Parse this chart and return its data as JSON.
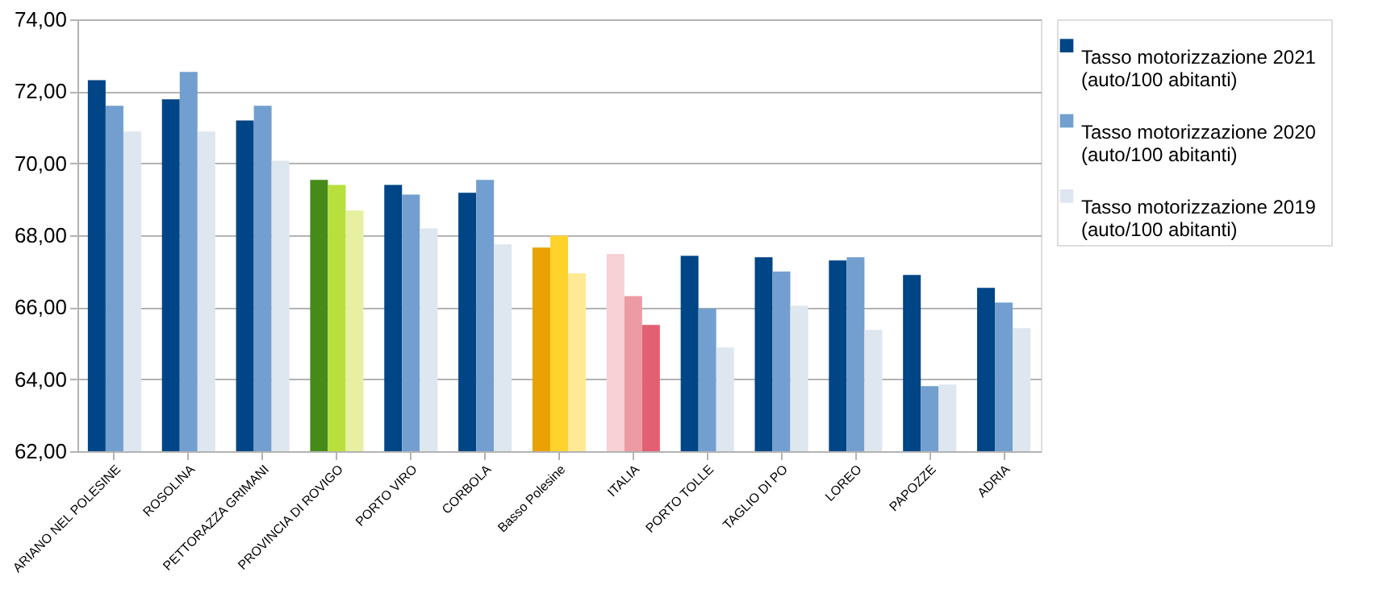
{
  "chart_data": {
    "type": "bar",
    "categories": [
      "ARIANO NEL POLESINE",
      "ROSOLINA",
      "PETTORAZZA GRIMANI",
      "PROVINCIA DI ROVIGO",
      "PORTO VIRO",
      "CORBOLA",
      "Basso Polesine",
      "ITALIA",
      "PORTO TOLLE",
      "TAGLIO DI PO",
      "LOREO",
      "PAPOZZE",
      "ADRIA"
    ],
    "series": [
      {
        "name": "Tasso motorizzazione 2021 (auto/100 abitanti)",
        "color": "#004586",
        "colors": [
          "#004586",
          "#004586",
          "#004586",
          "#468a1a",
          "#004586",
          "#004586",
          "#e8a202",
          "#f7d1d5",
          "#004586",
          "#004586",
          "#004586",
          "#004586",
          "#004586"
        ],
        "values": [
          72.31,
          71.78,
          71.19,
          69.54,
          69.4,
          69.18,
          67.66,
          67.48,
          67.43,
          67.39,
          67.3,
          66.9,
          66.54
        ]
      },
      {
        "name": "Tasso motorizzazione 2020 (auto/100 abitanti)",
        "color": "#729fcf",
        "colors": [
          "#729fcf",
          "#729fcf",
          "#729fcf",
          "#b8e03c",
          "#729fcf",
          "#729fcf",
          "#ffd32c",
          "#ec9ba4",
          "#729fcf",
          "#729fcf",
          "#729fcf",
          "#729fcf",
          "#729fcf"
        ],
        "values": [
          71.6,
          72.54,
          71.6,
          69.4,
          69.13,
          69.54,
          67.99,
          66.31,
          65.96,
          66.99,
          67.39,
          63.81,
          66.13
        ]
      },
      {
        "name": "Tasso motorizzazione 2019 (auto/100 abitanti)",
        "color": "#dee6ef",
        "colors": [
          "#dee6ef",
          "#dee6ef",
          "#dee6ef",
          "#e6f0a0",
          "#dee6ef",
          "#dee6ef",
          "#ffe994",
          "#e16173",
          "#dee6ef",
          "#dee6ef",
          "#dee6ef",
          "#dee6ef",
          "#dee6ef"
        ],
        "values": [
          70.88,
          70.88,
          70.07,
          68.69,
          68.19,
          67.75,
          66.94,
          65.51,
          64.88,
          66.04,
          65.37,
          63.85,
          65.42
        ]
      }
    ],
    "ylim": [
      62,
      74
    ],
    "yticks": [
      {
        "value": 62,
        "label": "62,00"
      },
      {
        "value": 64,
        "label": "64,00"
      },
      {
        "value": 66,
        "label": "66,00"
      },
      {
        "value": 68,
        "label": "68,00"
      },
      {
        "value": 70,
        "label": "70,00"
      },
      {
        "value": 72,
        "label": "72,00"
      },
      {
        "value": 74,
        "label": "74,00"
      }
    ],
    "grid": "y",
    "legend": "right"
  }
}
